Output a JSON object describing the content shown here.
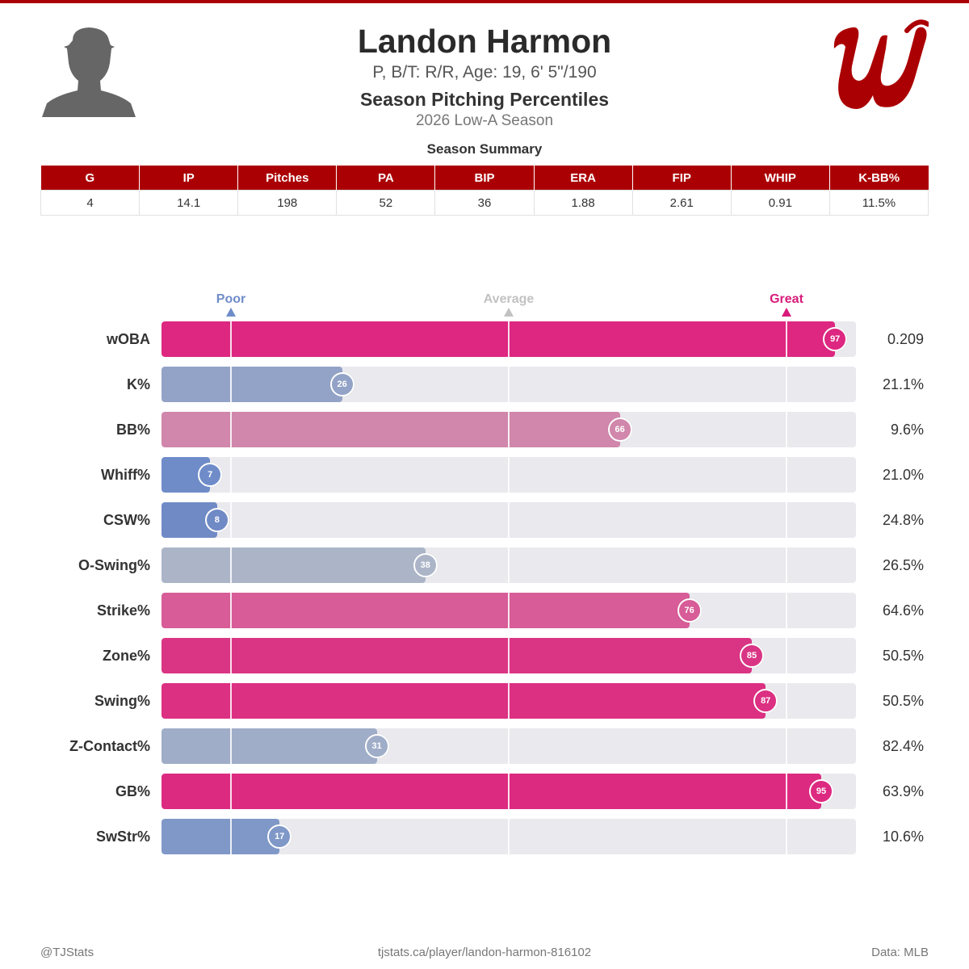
{
  "header": {
    "player_name": "Landon Harmon",
    "bio": "P, B/T: R/R, Age: 19, 6' 5\"/190",
    "subtitle": "Season Pitching Percentiles",
    "season": "2026 Low-A Season",
    "avatar_icon": "player-silhouette-icon",
    "logo_icon": "team-curly-w-logo-icon"
  },
  "summary": {
    "title": "Season Summary",
    "columns": [
      "G",
      "IP",
      "Pitches",
      "PA",
      "BIP",
      "ERA",
      "FIP",
      "WHIP",
      "K-BB%"
    ],
    "values": [
      "4",
      "14.1",
      "198",
      "52",
      "36",
      "1.88",
      "2.61",
      "0.91",
      "11.5%"
    ]
  },
  "chart_data": {
    "type": "bar",
    "orientation": "horizontal",
    "scale": [
      0,
      100
    ],
    "markers": [
      {
        "label": "Poor",
        "value": 10,
        "color": "#6f8cc9"
      },
      {
        "label": "Average",
        "value": 50,
        "color": "#c2c2c2"
      },
      {
        "label": "Great",
        "value": 90,
        "color": "#d81b7a"
      }
    ],
    "categories": [
      "wOBA",
      "K%",
      "BB%",
      "Whiff%",
      "CSW%",
      "O-Swing%",
      "Strike%",
      "Zone%",
      "Swing%",
      "Z-Contact%",
      "GB%",
      "SwStr%"
    ],
    "percentiles": [
      97,
      26,
      66,
      7,
      8,
      38,
      76,
      85,
      87,
      31,
      95,
      17
    ],
    "stat_values": [
      "0.209",
      "21.1%",
      "9.6%",
      "21.0%",
      "24.8%",
      "26.5%",
      "64.6%",
      "50.5%",
      "50.5%",
      "82.4%",
      "63.9%",
      "10.6%"
    ],
    "colors": [
      "#dd2780",
      "#93a3c7",
      "#d087ab",
      "#6f8cc9",
      "#708ac6",
      "#acb5c8",
      "#d75c97",
      "#da3584",
      "#dc3082",
      "#9fadc8",
      "#dd2a81",
      "#7f98c8"
    ]
  },
  "footer": {
    "left": "@TJStats",
    "center": "tjstats.ca/player/landon-harmon-816102",
    "right": "Data: MLB"
  },
  "colors": {
    "accent": "#ab0003",
    "track": "#e9e9ee"
  }
}
